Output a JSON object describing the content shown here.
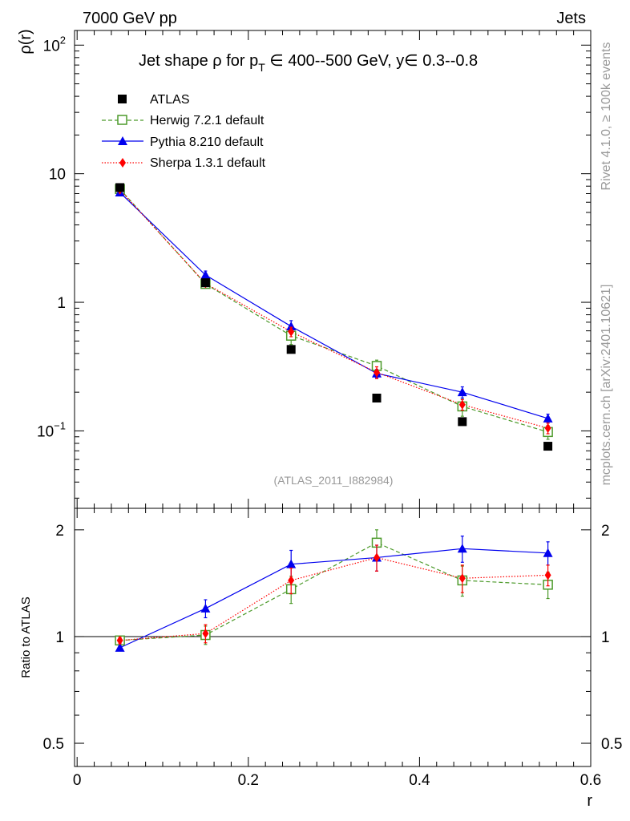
{
  "header": {
    "left": "7000 GeV pp",
    "right": "Jets"
  },
  "side_labels": {
    "rivet": "Rivet 4.1.0, ≥ 100k events",
    "mcplots": "mcplots.cern.ch [arXiv:2401.10621]"
  },
  "chart_data": {
    "type": "scatter",
    "title": "Jet shape ρ for p_T ∈ 400--500 GeV, y ∈ 0.3--0.8",
    "title_parts": {
      "pre": "Jet shape ρ for p",
      "sub": "T",
      "post": " ∈ 400--500 GeV, y∈ 0.3--0.8"
    },
    "analysis_label": "(ATLAS_2011_I882984)",
    "xlabel": "r",
    "xlim": [
      -0.003,
      0.6
    ],
    "x_ticks": [
      "0",
      "0.2",
      "0.4",
      "0.6"
    ],
    "main": {
      "ylabel": "ρ(r)",
      "yscale": "log",
      "ylim": [
        0.025,
        130
      ],
      "y_ticks": [
        {
          "value": 0.1,
          "base": "10",
          "exp": "−1"
        },
        {
          "value": 1,
          "base": "1",
          "exp": ""
        },
        {
          "value": 10,
          "base": "10",
          "exp": ""
        },
        {
          "value": 100,
          "base": "10",
          "exp": "2"
        }
      ]
    },
    "ratio": {
      "ylabel": "Ratio to ATLAS",
      "yscale": "log",
      "ylim": [
        0.43,
        2.3
      ],
      "y_ticks": [
        "0.5",
        "1",
        "2"
      ],
      "y_tick_values": [
        0.5,
        1,
        2
      ]
    },
    "x": [
      0.05,
      0.15,
      0.25,
      0.35,
      0.45,
      0.55
    ],
    "series": [
      {
        "name": "ATLAS",
        "legend": "ATLAS",
        "marker": "square-filled",
        "color": "#000000",
        "values": [
          7.8,
          1.42,
          0.43,
          0.18,
          0.118,
          0.076
        ],
        "ratio": [
          1,
          1,
          1,
          1,
          1,
          1
        ],
        "main_err": [
          0,
          0,
          0,
          0,
          0,
          0
        ],
        "ratio_err": [
          0,
          0,
          0,
          0,
          0,
          0
        ]
      },
      {
        "name": "Herwig",
        "legend": "Herwig 7.2.1 default",
        "marker": "square-open",
        "line": "dashed",
        "color": "#4c9a2a",
        "values": [
          7.6,
          1.39,
          0.55,
          0.32,
          0.155,
          0.098
        ],
        "ratio": [
          0.975,
          1.01,
          1.36,
          1.84,
          1.44,
          1.4
        ],
        "main_err": [
          0.2,
          0.08,
          0.08,
          0.035,
          0.025,
          0.012
        ],
        "ratio_err": [
          0.02,
          0.06,
          0.12,
          0.16,
          0.14,
          0.12
        ]
      },
      {
        "name": "Pythia",
        "legend": "Pythia 8.210 default",
        "marker": "triangle-filled",
        "line": "solid",
        "color": "#0000ee",
        "values": [
          7.15,
          1.63,
          0.65,
          0.28,
          0.2,
          0.125
        ],
        "ratio": [
          0.93,
          1.2,
          1.6,
          1.67,
          1.77,
          1.72
        ],
        "main_err": [
          0.2,
          0.12,
          0.07,
          0.02,
          0.02,
          0.01
        ],
        "ratio_err": [
          0.01,
          0.07,
          0.15,
          0.14,
          0.15,
          0.13
        ]
      },
      {
        "name": "Sherpa",
        "legend": "Sherpa 1.3.1 default",
        "marker": "diamond-filled",
        "line": "dotted",
        "color": "#ff0000",
        "values": [
          7.5,
          1.4,
          0.59,
          0.285,
          0.16,
          0.105
        ],
        "ratio": [
          0.975,
          1.02,
          1.44,
          1.67,
          1.46,
          1.49
        ],
        "main_err": [
          0.2,
          0.06,
          0.05,
          0.03,
          0.015,
          0.01
        ],
        "ratio_err": [
          0.02,
          0.06,
          0.12,
          0.14,
          0.13,
          0.1
        ]
      }
    ]
  }
}
